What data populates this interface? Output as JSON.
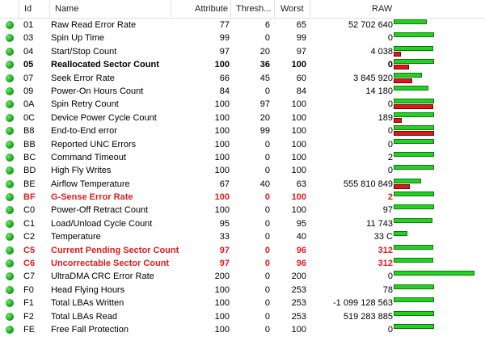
{
  "columns": {
    "status": "",
    "id": "Id",
    "name": "Name",
    "attribute": "Attribute",
    "threshold": "Thresh...",
    "worst": "Worst",
    "raw": "RAW"
  },
  "colors": {
    "ok": "#15a815",
    "warning": "#e21b1b",
    "bar_good": "#23d023",
    "bar_bad": "#d91a1a"
  },
  "rows": [
    {
      "id": "01",
      "name": "Raw Read Error Rate",
      "attribute": "77",
      "threshold": "6",
      "worst": "65",
      "raw": "52 702 640",
      "style": "normal",
      "good_level": 0.82,
      "bad_level": 0.0
    },
    {
      "id": "03",
      "name": "Spin Up Time",
      "attribute": "99",
      "threshold": "0",
      "worst": "99",
      "raw": "0",
      "style": "normal",
      "good_level": 1.0,
      "bad_level": 0.0
    },
    {
      "id": "04",
      "name": "Start/Stop Count",
      "attribute": "97",
      "threshold": "20",
      "worst": "97",
      "raw": "4 038",
      "style": "normal",
      "good_level": 0.98,
      "bad_level": 0.18
    },
    {
      "id": "05",
      "name": "Reallocated Sector Count",
      "attribute": "100",
      "threshold": "36",
      "worst": "100",
      "raw": "0",
      "style": "bold",
      "good_level": 1.0,
      "bad_level": 0.38
    },
    {
      "id": "07",
      "name": "Seek Error Rate",
      "attribute": "66",
      "threshold": "45",
      "worst": "60",
      "raw": "3 845 920",
      "style": "normal",
      "good_level": 0.7,
      "bad_level": 0.46
    },
    {
      "id": "09",
      "name": "Power-On Hours Count",
      "attribute": "84",
      "threshold": "0",
      "worst": "84",
      "raw": "14 180",
      "style": "normal",
      "good_level": 0.86,
      "bad_level": 0.0
    },
    {
      "id": "0A",
      "name": "Spin Retry Count",
      "attribute": "100",
      "threshold": "97",
      "worst": "100",
      "raw": "0",
      "style": "normal",
      "good_level": 1.0,
      "bad_level": 0.98
    },
    {
      "id": "0C",
      "name": "Device Power Cycle Count",
      "attribute": "100",
      "threshold": "20",
      "worst": "100",
      "raw": "189",
      "style": "normal",
      "good_level": 1.0,
      "bad_level": 0.2
    },
    {
      "id": "B8",
      "name": "End-to-End error",
      "attribute": "100",
      "threshold": "99",
      "worst": "100",
      "raw": "0",
      "style": "normal",
      "good_level": 1.0,
      "bad_level": 1.0
    },
    {
      "id": "BB",
      "name": "Reported UNC Errors",
      "attribute": "100",
      "threshold": "0",
      "worst": "100",
      "raw": "0",
      "style": "normal",
      "good_level": 1.0,
      "bad_level": 0.0
    },
    {
      "id": "BC",
      "name": "Command Timeout",
      "attribute": "100",
      "threshold": "0",
      "worst": "100",
      "raw": "2",
      "style": "normal",
      "good_level": 1.0,
      "bad_level": 0.0
    },
    {
      "id": "BD",
      "name": "High Fly Writes",
      "attribute": "100",
      "threshold": "0",
      "worst": "100",
      "raw": "0",
      "style": "normal",
      "good_level": 1.0,
      "bad_level": 0.0
    },
    {
      "id": "BE",
      "name": "Airflow Temperature",
      "attribute": "67",
      "threshold": "40",
      "worst": "63",
      "raw": "555 810 849",
      "style": "normal",
      "good_level": 0.68,
      "bad_level": 0.4
    },
    {
      "id": "BF",
      "name": "G-Sense Error Rate",
      "attribute": "100",
      "threshold": "0",
      "worst": "100",
      "raw": "2",
      "style": "warning",
      "good_level": 1.0,
      "bad_level": 0.0
    },
    {
      "id": "C0",
      "name": "Power-Off Retract Count",
      "attribute": "100",
      "threshold": "0",
      "worst": "100",
      "raw": "97",
      "style": "normal",
      "good_level": 1.0,
      "bad_level": 0.0
    },
    {
      "id": "C1",
      "name": "Load/Unload Cycle Count",
      "attribute": "95",
      "threshold": "0",
      "worst": "95",
      "raw": "11 743",
      "style": "normal",
      "good_level": 0.96,
      "bad_level": 0.0
    },
    {
      "id": "C2",
      "name": "Temperature",
      "attribute": "33",
      "threshold": "0",
      "worst": "40",
      "raw": "33 C",
      "style": "normal",
      "good_level": 0.34,
      "bad_level": 0.0
    },
    {
      "id": "C5",
      "name": "Current Pending Sector Count",
      "attribute": "97",
      "threshold": "0",
      "worst": "96",
      "raw": "312",
      "style": "warning",
      "good_level": 0.98,
      "bad_level": 0.0
    },
    {
      "id": "C6",
      "name": "Uncorrectable Sector Count",
      "attribute": "97",
      "threshold": "0",
      "worst": "96",
      "raw": "312",
      "style": "warning",
      "good_level": 0.98,
      "bad_level": 0.0
    },
    {
      "id": "C7",
      "name": "UltraDMA CRC Error Rate",
      "attribute": "200",
      "threshold": "0",
      "worst": "200",
      "raw": "0",
      "style": "normal",
      "good_level": 2.0,
      "bad_level": 0.0
    },
    {
      "id": "F0",
      "name": "Head Flying Hours",
      "attribute": "100",
      "threshold": "0",
      "worst": "253",
      "raw": "78",
      "style": "normal",
      "good_level": 1.0,
      "bad_level": 0.0
    },
    {
      "id": "F1",
      "name": "Total LBAs Written",
      "attribute": "100",
      "threshold": "0",
      "worst": "253",
      "raw": "-1 099 128 563",
      "style": "normal",
      "good_level": 1.0,
      "bad_level": 0.0
    },
    {
      "id": "F2",
      "name": "Total LBAs Read",
      "attribute": "100",
      "threshold": "0",
      "worst": "253",
      "raw": "519 283 885",
      "style": "normal",
      "good_level": 1.0,
      "bad_level": 0.0
    },
    {
      "id": "FE",
      "name": "Free Fall Protection",
      "attribute": "100",
      "threshold": "0",
      "worst": "100",
      "raw": "0",
      "style": "normal",
      "good_level": 1.0,
      "bad_level": 0.0
    }
  ]
}
